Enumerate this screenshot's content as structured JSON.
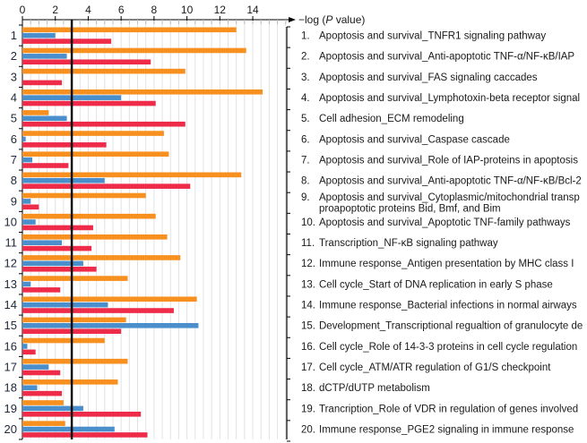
{
  "chart_data": {
    "type": "bar",
    "orientation": "horizontal",
    "title": "",
    "xlabel": "−log (P value)",
    "xlabel_parts": {
      "prefix": "−log (",
      "italic": "P",
      "suffix": " value)"
    },
    "ylabel": "",
    "xlim": [
      0,
      16
    ],
    "xticks": [
      0,
      2,
      4,
      6,
      8,
      10,
      12,
      14
    ],
    "threshold_line": 3,
    "grid": true,
    "legend": null,
    "colors": {
      "series1": "#F7901E",
      "series2": "#4A8FCB",
      "series3": "#EE2C4A",
      "threshold": "#000000",
      "grid": "#e2e2e2"
    },
    "row_numbers": [
      "1",
      "2",
      "3",
      "4",
      "5",
      "6",
      "7",
      "8",
      "9",
      "10",
      "11",
      "12",
      "13",
      "14",
      "15",
      "16",
      "17",
      "18",
      "19",
      "20"
    ],
    "categories": [
      [
        "1.",
        "Apoptosis and survival_TNFR1 signaling pathway"
      ],
      [
        "2.",
        "Apoptosis and survival_Anti-apoptotic TNF-α/NF-κB/IAP"
      ],
      [
        "3.",
        "Apoptosis and survival_FAS signaling caccades"
      ],
      [
        "4.",
        "Apoptosis and survival_Lymphotoxin-beta receptor signal"
      ],
      [
        "5.",
        "Cell adhesion_ECM remodeling"
      ],
      [
        "6.",
        "Apoptosis and survival_Caspase cascade"
      ],
      [
        "7.",
        "Apoptosis and survival_Role of IAP-proteins in apoptosis"
      ],
      [
        "8.",
        "Apoptosis and survival_Anti-apoptotic TNF-α/NF-κB/Bcl-2"
      ],
      [
        "9.",
        "Apoptosis and survival_Cytoplasmic/mitochondrial transp",
        "proapoptotic proteins Bid, Bmf, and Bim"
      ],
      [
        "10.",
        "Apoptosis and survival_Apoptotic TNF-family pathways"
      ],
      [
        "11.",
        "Transcription_NF-κB signaling pathway"
      ],
      [
        "12.",
        "Immune response_Antigen presentation by MHC class I"
      ],
      [
        "13.",
        "Cell cycle_Start of DNA replication in early S phase"
      ],
      [
        "14.",
        "Immune response_Bacterial infections in normal airways"
      ],
      [
        "15.",
        "Development_Transcriptional regualtion of granulocyte de"
      ],
      [
        "16.",
        "Cell cycle_Role of 14-3-3 proteins in cell cycle regulation"
      ],
      [
        "17.",
        "Cell cycle_ATM/ATR regulation of G1/S checkpoint"
      ],
      [
        "18.",
        "dCTP/dUTP metabolism"
      ],
      [
        "19.",
        "Trancription_Role of VDR in regulation of genes involved"
      ],
      [
        "20.",
        "Immune response_PGE2 signaling in immune response"
      ]
    ],
    "series": [
      {
        "name": "orange",
        "color": "#F7901E",
        "values": [
          13.0,
          13.6,
          9.9,
          14.6,
          1.6,
          8.6,
          8.9,
          13.3,
          7.5,
          8.1,
          8.8,
          9.6,
          6.4,
          10.6,
          6.3,
          5.0,
          6.4,
          5.8,
          2.5,
          2.6
        ]
      },
      {
        "name": "blue",
        "color": "#4A8FCB",
        "values": [
          2.0,
          2.7,
          0,
          6.0,
          2.7,
          0.2,
          0.6,
          5.0,
          0.5,
          0.8,
          2.4,
          3.7,
          0.5,
          5.2,
          10.7,
          0.3,
          1.6,
          0.9,
          3.7,
          5.6
        ]
      },
      {
        "name": "red",
        "color": "#EE2C4A",
        "values": [
          5.4,
          7.8,
          2.4,
          8.1,
          9.9,
          5.1,
          2.8,
          10.2,
          1.0,
          4.3,
          4.2,
          4.5,
          2.3,
          9.2,
          6.0,
          0.8,
          2.3,
          2.4,
          7.2,
          7.6
        ]
      }
    ]
  }
}
